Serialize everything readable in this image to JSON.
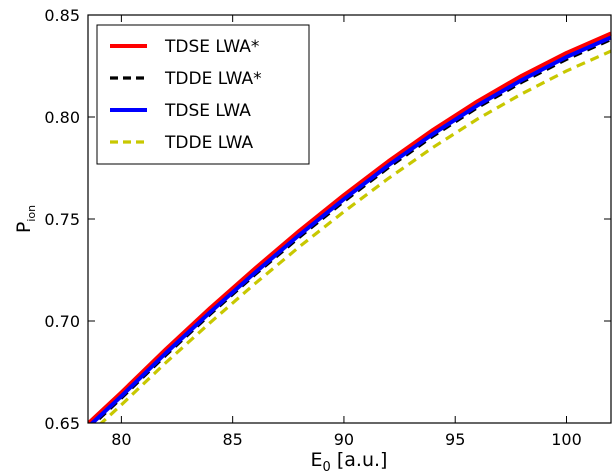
{
  "chart_data": {
    "type": "line",
    "xlabel_main": "E",
    "xlabel_sub": "0",
    "xlabel_unit": " [a.u.]",
    "ylabel_main": "P",
    "ylabel_sub": "ion",
    "xlim": [
      78.5,
      102
    ],
    "ylim": [
      0.65,
      0.85
    ],
    "xticks": [
      80,
      85,
      90,
      95,
      100
    ],
    "xtick_labels": [
      "80",
      "85",
      "90",
      "95",
      "100"
    ],
    "yticks": [
      0.65,
      0.7,
      0.75,
      0.8,
      0.85
    ],
    "ytick_labels": [
      "0.65",
      "0.70",
      "0.75",
      "0.80",
      "0.85"
    ],
    "grid": false,
    "legend_position": "top-left",
    "series": [
      {
        "name": "TDSE LWA*",
        "color": "#ff0000",
        "dash": "solid",
        "x": [
          78.5,
          80,
          82,
          84,
          86,
          88,
          90,
          92,
          94,
          96,
          98,
          100,
          102
        ],
        "y": [
          0.6497,
          0.665,
          0.6862,
          0.7064,
          0.7257,
          0.7442,
          0.7617,
          0.7783,
          0.7937,
          0.8077,
          0.8203,
          0.8314,
          0.841
        ]
      },
      {
        "name": "TDDE LWA*",
        "color": "#000000",
        "dash": "dashed",
        "x": [
          78.5,
          80,
          82,
          84,
          86,
          88,
          90,
          92,
          94,
          96,
          98,
          100,
          102
        ],
        "y": [
          0.647,
          0.6622,
          0.6833,
          0.7034,
          0.7227,
          0.7411,
          0.7586,
          0.7752,
          0.7906,
          0.8046,
          0.8171,
          0.8283,
          0.838
        ]
      },
      {
        "name": "TDSE LWA",
        "color": "#0000ff",
        "dash": "solid",
        "x": [
          78.5,
          80,
          82,
          84,
          86,
          88,
          90,
          92,
          94,
          96,
          98,
          100,
          102
        ],
        "y": [
          0.648,
          0.6632,
          0.6843,
          0.7044,
          0.7237,
          0.7422,
          0.7597,
          0.7763,
          0.7917,
          0.8057,
          0.8182,
          0.8294,
          0.839
        ]
      },
      {
        "name": "TDDE LWA",
        "color": "#c8c800",
        "dash": "dashed",
        "x": [
          78.5,
          80,
          82,
          84,
          86,
          88,
          90,
          92,
          94,
          96,
          98,
          100,
          102
        ],
        "y": [
          0.644,
          0.6589,
          0.6796,
          0.6993,
          0.7183,
          0.7364,
          0.7536,
          0.7699,
          0.7851,
          0.799,
          0.8114,
          0.8226,
          0.8323
        ]
      }
    ]
  }
}
